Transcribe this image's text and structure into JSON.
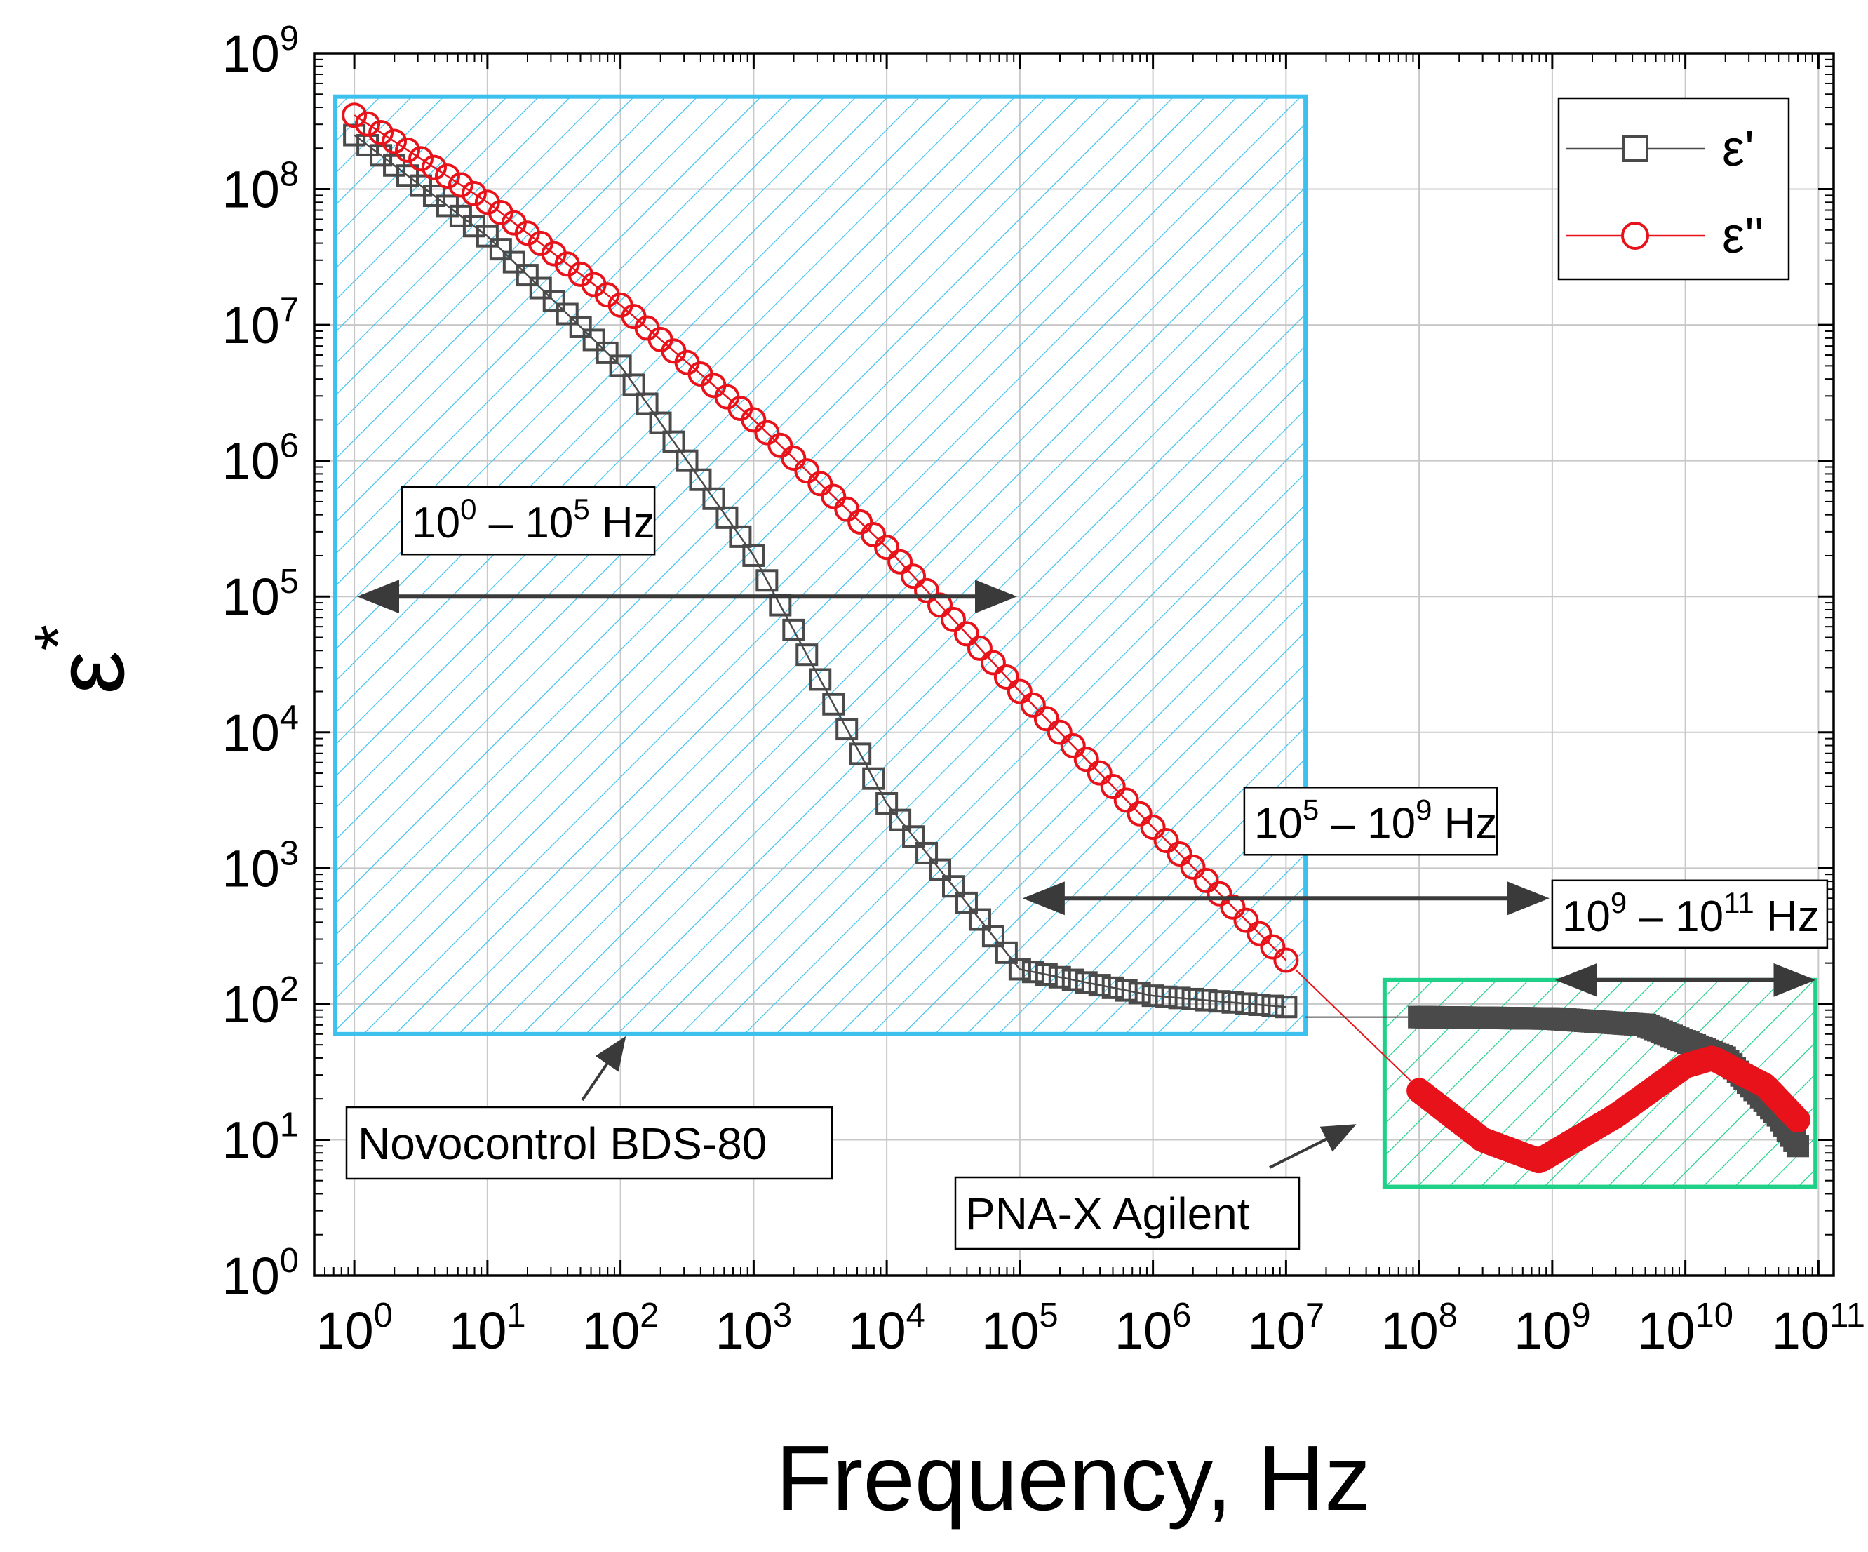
{
  "chart_data": {
    "type": "scatter",
    "x_scale": "log",
    "y_scale": "log",
    "xlim": [
      0.5,
      130000000000
    ],
    "ylim": [
      1,
      1000000000
    ],
    "xlabel": "Frequency, Hz",
    "ylabel": {
      "base": "ε",
      "sup": "*"
    },
    "x_ticks": [
      {
        "value": 1,
        "base": "10",
        "exp": "0"
      },
      {
        "value": 10,
        "base": "10",
        "exp": "1"
      },
      {
        "value": 100,
        "base": "10",
        "exp": "2"
      },
      {
        "value": 1000,
        "base": "10",
        "exp": "3"
      },
      {
        "value": 10000,
        "base": "10",
        "exp": "4"
      },
      {
        "value": 100000,
        "base": "10",
        "exp": "5"
      },
      {
        "value": 1000000,
        "base": "10",
        "exp": "6"
      },
      {
        "value": 10000000,
        "base": "10",
        "exp": "7"
      },
      {
        "value": 100000000,
        "base": "10",
        "exp": "8"
      },
      {
        "value": 1000000000,
        "base": "10",
        "exp": "9"
      },
      {
        "value": 10000000000,
        "base": "10",
        "exp": "10"
      },
      {
        "value": 100000000000,
        "base": "10",
        "exp": "11"
      }
    ],
    "y_ticks": [
      {
        "value": 1,
        "base": "10",
        "exp": "0"
      },
      {
        "value": 10,
        "base": "10",
        "exp": "1"
      },
      {
        "value": 100,
        "base": "10",
        "exp": "2"
      },
      {
        "value": 1000,
        "base": "10",
        "exp": "3"
      },
      {
        "value": 10000,
        "base": "10",
        "exp": "4"
      },
      {
        "value": 100000,
        "base": "10",
        "exp": "5"
      },
      {
        "value": 1000000,
        "base": "10",
        "exp": "6"
      },
      {
        "value": 10000000,
        "base": "10",
        "exp": "7"
      },
      {
        "value": 100000000,
        "base": "10",
        "exp": "8"
      },
      {
        "value": 1000000000,
        "base": "10",
        "exp": "9"
      }
    ],
    "grid": true,
    "legend": {
      "position": "top-right",
      "entries": [
        {
          "label": "ε'",
          "series": "eps_real"
        },
        {
          "label": "ε''",
          "series": "eps_imag"
        }
      ]
    },
    "series": [
      {
        "id": "eps_real",
        "name": "ε'",
        "marker": "square",
        "color": "#4a4a4a",
        "segments": [
          {
            "source": "Novocontrol BDS-80",
            "x_range": [
              1,
              10000000
            ],
            "points": [
              [
                1,
                250000000
              ],
              [
                10,
                45000000
              ],
              [
                100,
                5000000
              ],
              [
                1000,
                200000
              ],
              [
                10000,
                3000
              ],
              [
                100000,
                180
              ],
              [
                1000000,
                115
              ],
              [
                10000000,
                95
              ]
            ]
          },
          {
            "source": "PNA-X Agilent",
            "x_range": [
              100000000,
              70000000000
            ],
            "points": [
              [
                100000000,
                80
              ],
              [
                1000000000,
                78
              ],
              [
                5000000000,
                70
              ],
              [
                20000000000,
                40
              ],
              [
                50000000000,
                15
              ],
              [
                70000000000,
                9
              ]
            ]
          }
        ]
      },
      {
        "id": "eps_imag",
        "name": "ε''",
        "marker": "circle",
        "color": "#e8121a",
        "segments": [
          {
            "source": "Novocontrol BDS-80",
            "x_range": [
              1,
              10000000
            ],
            "points": [
              [
                1,
                350000000
              ],
              [
                10,
                80000000
              ],
              [
                100,
                14000000
              ],
              [
                1000,
                2000000
              ],
              [
                10000,
                230000
              ],
              [
                100000,
                20000
              ],
              [
                1000000,
                2000
              ],
              [
                10000000,
                210
              ]
            ]
          },
          {
            "source": "PNA-X Agilent",
            "x_range": [
              100000000,
              70000000000
            ],
            "points": [
              [
                100000000,
                23
              ],
              [
                300000000,
                10
              ],
              [
                800000000,
                7
              ],
              [
                3000000000,
                15
              ],
              [
                10000000000,
                35
              ],
              [
                16000000000,
                40
              ],
              [
                40000000000,
                25
              ],
              [
                70000000000,
                14
              ]
            ]
          }
        ]
      }
    ],
    "annotations": [
      {
        "id": "range1",
        "base1": "10",
        "exp1": "0",
        "sep": " – ",
        "base2": "10",
        "exp2": "5",
        "unit": " Hz",
        "x_from": 1,
        "x_to": 100000,
        "y": 100000
      },
      {
        "id": "range2",
        "base1": "10",
        "exp1": "5",
        "sep": " – ",
        "base2": "10",
        "exp2": "9",
        "unit": " Hz",
        "x_from": 100000,
        "x_to": 1000000000,
        "y": 600
      },
      {
        "id": "range3",
        "base1": "10",
        "exp1": "9",
        "sep": " – ",
        "base2": "10",
        "exp2": "11",
        "unit": " Hz",
        "x_from": 1000000000,
        "x_to": 100000000000,
        "y": 150
      }
    ],
    "regions": [
      {
        "id": "novocontrol",
        "label": "Novocontrol BDS-80",
        "color": "#3cc0ee",
        "x_range": [
          0.72,
          14000000
        ],
        "y_range": [
          60,
          480000000
        ]
      },
      {
        "id": "pnax",
        "label": "PNA-X Agilent",
        "color": "#1fd088",
        "x_range": [
          55000000,
          95000000000
        ],
        "y_range": [
          4.5,
          150
        ]
      }
    ]
  }
}
